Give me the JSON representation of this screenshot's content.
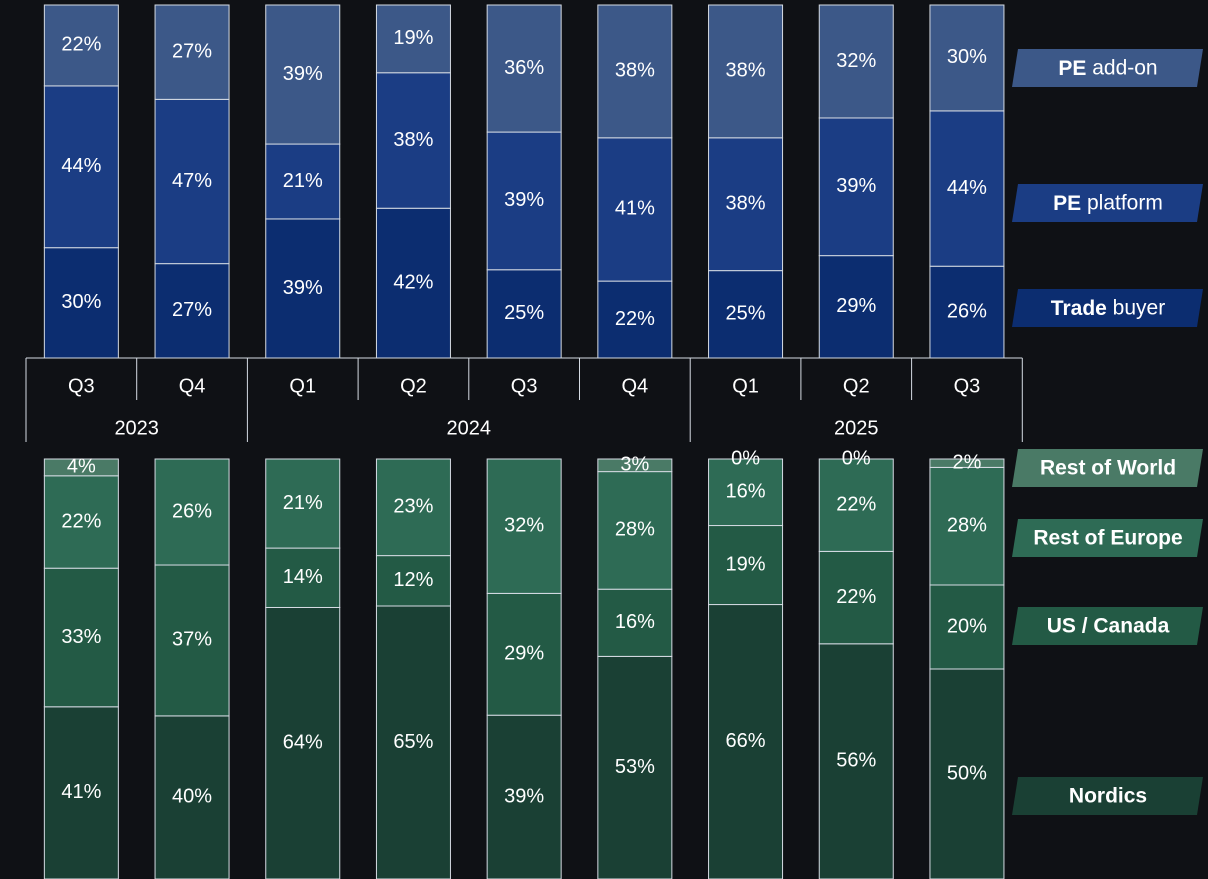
{
  "x_axis": {
    "groups": [
      {
        "label": "2023",
        "categories": [
          "Q3",
          "Q4"
        ]
      },
      {
        "label": "2024",
        "categories": [
          "Q1",
          "Q2",
          "Q3",
          "Q4"
        ]
      },
      {
        "label": "2025",
        "categories": [
          "Q1",
          "Q2",
          "Q3"
        ]
      }
    ]
  },
  "chart_data": [
    {
      "type": "stacked_bar",
      "legend_bold": "first-word",
      "series": [
        {
          "name": "Trade buyer",
          "color": "#0c2d70",
          "values": [
            30,
            27,
            39,
            42,
            25,
            22,
            25,
            29,
            26
          ],
          "value_labels": [
            "30%",
            "27%",
            "39%",
            "42%",
            "25%",
            "22%",
            "25%",
            "29%",
            "26%"
          ]
        },
        {
          "name": "PE platform",
          "color": "#1b3d84",
          "values": [
            44,
            47,
            21,
            38,
            39,
            41,
            38,
            39,
            44
          ],
          "value_labels": [
            "44%",
            "47%",
            "21%",
            "38%",
            "39%",
            "41%",
            "38%",
            "39%",
            "44%"
          ]
        },
        {
          "name": "PE add-on",
          "color": "#3c5888",
          "values": [
            22,
            27,
            39,
            19,
            36,
            38,
            38,
            32,
            30
          ],
          "value_labels": [
            "22%",
            "27%",
            "39%",
            "19%",
            "36%",
            "38%",
            "38%",
            "32%",
            "30%"
          ]
        }
      ]
    },
    {
      "type": "stacked_bar",
      "legend_bold": "all",
      "series": [
        {
          "name": "Nordics",
          "color": "#1a4034",
          "values": [
            41,
            40,
            64,
            65,
            39,
            53,
            66,
            56,
            50
          ],
          "value_labels": [
            "41%",
            "40%",
            "64%",
            "65%",
            "39%",
            "53%",
            "66%",
            "56%",
            "50%"
          ]
        },
        {
          "name": "US / Canada",
          "color": "#235a45",
          "values": [
            33,
            37,
            14,
            12,
            29,
            16,
            19,
            22,
            20
          ],
          "value_labels": [
            "33%",
            "37%",
            "14%",
            "12%",
            "29%",
            "16%",
            "19%",
            "22%",
            "20%"
          ]
        },
        {
          "name": "Rest of Europe",
          "color": "#2e6b55",
          "values": [
            22,
            26,
            21,
            23,
            32,
            28,
            16,
            22,
            28
          ],
          "value_labels": [
            "22%",
            "26%",
            "21%",
            "23%",
            "32%",
            "28%",
            "16%",
            "22%",
            "28%"
          ]
        },
        {
          "name": "Rest of World",
          "color": "#4a7a66",
          "values": [
            4,
            null,
            null,
            null,
            null,
            3,
            0,
            0,
            2
          ],
          "value_labels": [
            "4%",
            null,
            null,
            null,
            null,
            "3%",
            "0%",
            "0%",
            "2%"
          ]
        }
      ]
    }
  ]
}
